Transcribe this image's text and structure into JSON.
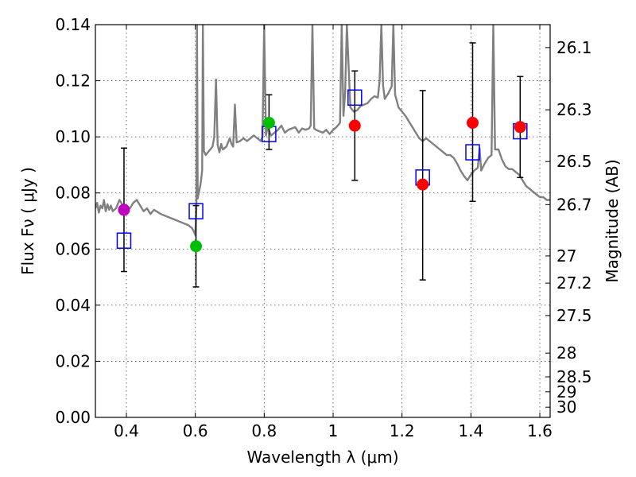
{
  "chart_data": {
    "type": "scatter",
    "xlabel": "Wavelength  λ (μm)",
    "ylabel": "Flux  Fν  ( μJy )",
    "y2label": "Magnitude (AB)",
    "xlim": [
      0.31,
      1.63
    ],
    "ylim": [
      0.0,
      0.14
    ],
    "grid": true,
    "x_ticks": [
      0.4,
      0.6,
      0.8,
      1.0,
      1.2,
      1.4,
      1.6
    ],
    "x_tick_labels": [
      "0.4",
      "0.6",
      "0.8",
      "1",
      "1.2",
      "1.4",
      "1.6"
    ],
    "y_ticks": [
      0.0,
      0.02,
      0.04,
      0.06,
      0.08,
      0.1,
      0.12,
      0.14
    ],
    "y_tick_labels": [
      "0.00",
      "0.02",
      "0.04",
      "0.06",
      "0.08",
      "0.10",
      "0.12",
      "0.14"
    ],
    "mag_ticks": [
      {
        "label": "26.1",
        "mag": 26.1
      },
      {
        "label": "26.3",
        "mag": 26.3
      },
      {
        "label": "26.5",
        "mag": 26.5
      },
      {
        "label": "26.7",
        "mag": 26.7
      },
      {
        "label": "27",
        "mag": 27.0
      },
      {
        "label": "27.2",
        "mag": 27.2
      },
      {
        "label": "27.5",
        "mag": 27.5
      },
      {
        "label": "28",
        "mag": 28.0
      },
      {
        "label": "28.5",
        "mag": 28.5
      },
      {
        "label": "29",
        "mag": 29.0
      },
      {
        "label": "30",
        "mag": 30.0
      }
    ],
    "observed": [
      {
        "x": 0.393,
        "y": 0.074,
        "err_low": 0.052,
        "err_high": 0.096,
        "color": "#bf00bf"
      },
      {
        "x": 0.602,
        "y": 0.061,
        "err_low": 0.0465,
        "err_high": 0.0755,
        "color": "#00bf00"
      },
      {
        "x": 0.814,
        "y": 0.105,
        "err_low": 0.0955,
        "err_high": 0.115,
        "color": "#00bf00"
      },
      {
        "x": 1.063,
        "y": 0.104,
        "err_low": 0.0845,
        "err_high": 0.1235,
        "color": "#ff0000"
      },
      {
        "x": 1.26,
        "y": 0.083,
        "err_low": 0.049,
        "err_high": 0.1165,
        "color": "#ff0000"
      },
      {
        "x": 1.405,
        "y": 0.105,
        "err_low": 0.077,
        "err_high": 0.1335,
        "color": "#ff0000"
      },
      {
        "x": 1.543,
        "y": 0.1035,
        "err_low": 0.0855,
        "err_high": 0.1215,
        "color": "#ff0000"
      }
    ],
    "model_points": [
      {
        "x": 0.393,
        "y": 0.063
      },
      {
        "x": 0.602,
        "y": 0.0735
      },
      {
        "x": 0.814,
        "y": 0.101
      },
      {
        "x": 1.063,
        "y": 0.114
      },
      {
        "x": 1.26,
        "y": 0.0855
      },
      {
        "x": 1.405,
        "y": 0.0945
      },
      {
        "x": 1.543,
        "y": 0.102
      }
    ],
    "spectrum": {
      "color": "#808080",
      "points": [
        [
          0.31,
          0.0745
        ],
        [
          0.315,
          0.0765
        ],
        [
          0.32,
          0.073
        ],
        [
          0.325,
          0.0755
        ],
        [
          0.33,
          0.0745
        ],
        [
          0.335,
          0.0775
        ],
        [
          0.34,
          0.0735
        ],
        [
          0.345,
          0.076
        ],
        [
          0.35,
          0.074
        ],
        [
          0.355,
          0.0755
        ],
        [
          0.36,
          0.0735
        ],
        [
          0.37,
          0.0745
        ],
        [
          0.38,
          0.0775
        ],
        [
          0.39,
          0.0755
        ],
        [
          0.4,
          0.0745
        ],
        [
          0.41,
          0.0745
        ],
        [
          0.42,
          0.0765
        ],
        [
          0.43,
          0.0775
        ],
        [
          0.44,
          0.0755
        ],
        [
          0.45,
          0.0735
        ],
        [
          0.46,
          0.0745
        ],
        [
          0.47,
          0.0725
        ],
        [
          0.48,
          0.074
        ],
        [
          0.5,
          0.0725
        ],
        [
          0.52,
          0.0715
        ],
        [
          0.54,
          0.0705
        ],
        [
          0.56,
          0.0695
        ],
        [
          0.58,
          0.0685
        ],
        [
          0.59,
          0.0675
        ],
        [
          0.595,
          0.0665
        ],
        [
          0.6,
          0.065
        ],
        [
          0.603,
          0.075
        ],
        [
          0.605,
          0.14
        ],
        [
          0.607,
          0.078
        ],
        [
          0.61,
          0.08
        ],
        [
          0.615,
          0.083
        ],
        [
          0.62,
          0.088
        ],
        [
          0.622,
          0.14
        ],
        [
          0.625,
          0.095
        ],
        [
          0.63,
          0.0935
        ],
        [
          0.64,
          0.095
        ],
        [
          0.65,
          0.0965
        ],
        [
          0.655,
          0.1
        ],
        [
          0.66,
          0.1205
        ],
        [
          0.665,
          0.097
        ],
        [
          0.67,
          0.0945
        ],
        [
          0.675,
          0.0975
        ],
        [
          0.68,
          0.0955
        ],
        [
          0.69,
          0.0965
        ],
        [
          0.7,
          0.0995
        ],
        [
          0.705,
          0.0975
        ],
        [
          0.71,
          0.0965
        ],
        [
          0.715,
          0.1115
        ],
        [
          0.72,
          0.098
        ],
        [
          0.73,
          0.0985
        ],
        [
          0.74,
          0.0995
        ],
        [
          0.75,
          0.0985
        ],
        [
          0.76,
          0.0995
        ],
        [
          0.77,
          0.1005
        ],
        [
          0.78,
          0.0995
        ],
        [
          0.79,
          0.0985
        ],
        [
          0.795,
          0.1
        ],
        [
          0.8,
          0.14
        ],
        [
          0.805,
          0.1005
        ],
        [
          0.81,
          0.1035
        ],
        [
          0.82,
          0.1005
        ],
        [
          0.83,
          0.1015
        ],
        [
          0.84,
          0.1025
        ],
        [
          0.85,
          0.104
        ],
        [
          0.86,
          0.1015
        ],
        [
          0.87,
          0.1025
        ],
        [
          0.88,
          0.103
        ],
        [
          0.89,
          0.1035
        ],
        [
          0.9,
          0.1015
        ],
        [
          0.91,
          0.103
        ],
        [
          0.92,
          0.1025
        ],
        [
          0.93,
          0.103
        ],
        [
          0.935,
          0.104
        ],
        [
          0.94,
          0.14
        ],
        [
          0.945,
          0.103
        ],
        [
          0.95,
          0.1025
        ],
        [
          0.96,
          0.102
        ],
        [
          0.97,
          0.1015
        ],
        [
          0.98,
          0.1025
        ],
        [
          0.99,
          0.101
        ],
        [
          1.0,
          0.1025
        ],
        [
          1.01,
          0.1035
        ],
        [
          1.02,
          0.105
        ],
        [
          1.025,
          0.14
        ],
        [
          1.03,
          0.1075
        ],
        [
          1.035,
          0.116
        ],
        [
          1.04,
          0.14
        ],
        [
          1.05,
          0.1105
        ],
        [
          1.06,
          0.109
        ],
        [
          1.07,
          0.1095
        ],
        [
          1.08,
          0.111
        ],
        [
          1.09,
          0.1115
        ],
        [
          1.1,
          0.112
        ],
        [
          1.11,
          0.1135
        ],
        [
          1.12,
          0.1145
        ],
        [
          1.13,
          0.114
        ],
        [
          1.135,
          0.12
        ],
        [
          1.14,
          0.14
        ],
        [
          1.145,
          0.1185
        ],
        [
          1.15,
          0.1135
        ],
        [
          1.16,
          0.1155
        ],
        [
          1.17,
          0.118
        ],
        [
          1.175,
          0.14
        ],
        [
          1.18,
          0.115
        ],
        [
          1.19,
          0.1105
        ],
        [
          1.2,
          0.109
        ],
        [
          1.21,
          0.1075
        ],
        [
          1.22,
          0.1055
        ],
        [
          1.23,
          0.1035
        ],
        [
          1.24,
          0.1015
        ],
        [
          1.25,
          0.0995
        ],
        [
          1.26,
          0.0985
        ],
        [
          1.27,
          0.0995
        ],
        [
          1.28,
          0.0985
        ],
        [
          1.29,
          0.0975
        ],
        [
          1.3,
          0.0965
        ],
        [
          1.31,
          0.0955
        ],
        [
          1.32,
          0.0945
        ],
        [
          1.33,
          0.0935
        ],
        [
          1.34,
          0.0935
        ],
        [
          1.35,
          0.0925
        ],
        [
          1.36,
          0.0905
        ],
        [
          1.37,
          0.088
        ],
        [
          1.38,
          0.086
        ],
        [
          1.39,
          0.0845
        ],
        [
          1.4,
          0.0865
        ],
        [
          1.41,
          0.088
        ],
        [
          1.42,
          0.089
        ],
        [
          1.425,
          0.096
        ],
        [
          1.43,
          0.088
        ],
        [
          1.44,
          0.0905
        ],
        [
          1.45,
          0.0925
        ],
        [
          1.46,
          0.0935
        ],
        [
          1.465,
          0.14
        ],
        [
          1.47,
          0.0955
        ],
        [
          1.48,
          0.0955
        ],
        [
          1.49,
          0.092
        ],
        [
          1.5,
          0.0895
        ],
        [
          1.51,
          0.0885
        ],
        [
          1.52,
          0.0885
        ],
        [
          1.53,
          0.0875
        ],
        [
          1.54,
          0.0865
        ],
        [
          1.55,
          0.0845
        ],
        [
          1.56,
          0.0825
        ],
        [
          1.57,
          0.0815
        ],
        [
          1.58,
          0.0805
        ],
        [
          1.59,
          0.0795
        ],
        [
          1.6,
          0.0785
        ],
        [
          1.61,
          0.0785
        ],
        [
          1.62,
          0.0775
        ],
        [
          1.63,
          0.0775
        ]
      ]
    }
  }
}
